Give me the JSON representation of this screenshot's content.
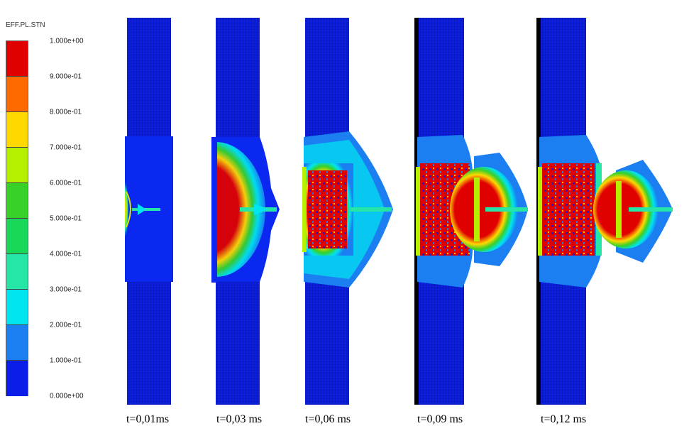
{
  "legend": {
    "title": "EFF.PL.STN",
    "ticks": [
      "1.000e+00",
      "9.000e-01",
      "8.000e-01",
      "7.000e-01",
      "6.000e-01",
      "5.000e-01",
      "4.000e-01",
      "3.000e-01",
      "2.000e-01",
      "1.000e-01",
      "0.000e+00"
    ],
    "colors": [
      "#e00000",
      "#ff6a00",
      "#ffd800",
      "#b5f000",
      "#37d12a",
      "#18d85a",
      "#25e6a6",
      "#00e5f0",
      "#1b7ff2",
      "#0a1ee8"
    ]
  },
  "captions": [
    "t=0,01ms",
    "t=0,03 ms",
    "t=0,06 ms",
    "t=0,09 ms",
    "t=0,12 ms"
  ]
}
